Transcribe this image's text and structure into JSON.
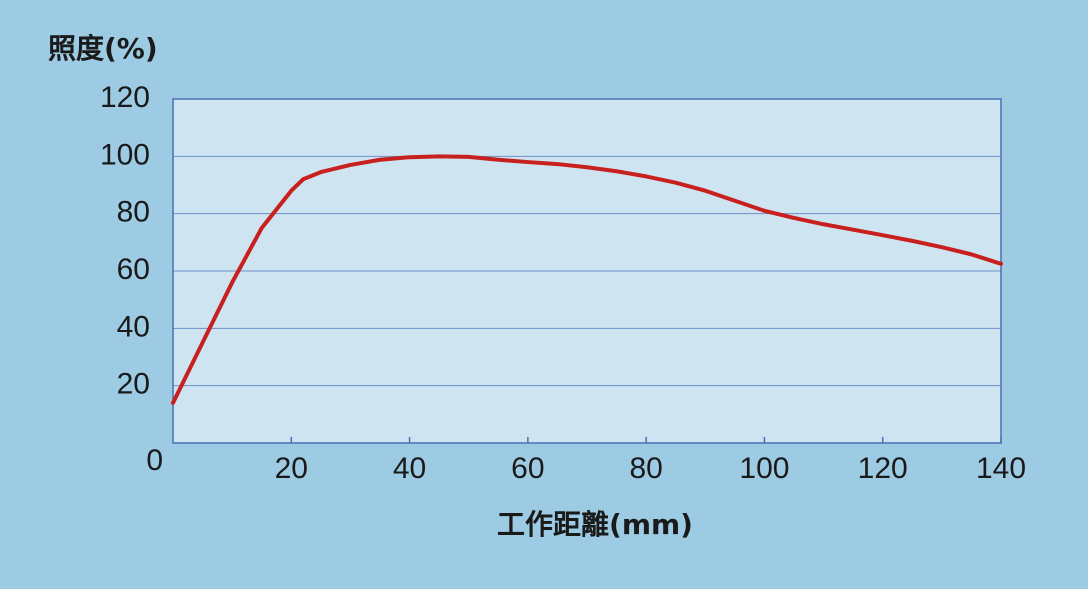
{
  "chart_data": {
    "type": "line",
    "y_label": "照度(%)",
    "x_label": "工作距離(mm)",
    "x": [
      0,
      5,
      10,
      15,
      20,
      22,
      25,
      30,
      35,
      40,
      45,
      50,
      55,
      60,
      65,
      70,
      75,
      80,
      85,
      90,
      95,
      100,
      105,
      110,
      115,
      120,
      125,
      130,
      135,
      140
    ],
    "series": [
      {
        "color": "#c8201e",
        "values": [
          14,
          35,
          56,
          75,
          88,
          92,
          94.5,
          97,
          98.8,
          99.7,
          100,
          99.8,
          98.8,
          98,
          97.3,
          96.2,
          94.8,
          93,
          90.8,
          88,
          84.5,
          81,
          78.5,
          76.3,
          74.4,
          72.5,
          70.5,
          68.3,
          65.8,
          62.5
        ]
      }
    ],
    "xlim": [
      0,
      140
    ],
    "xticks": [
      20,
      40,
      60,
      80,
      100,
      120,
      140
    ],
    "ylim": [
      0,
      120
    ],
    "yticks": [
      0,
      20,
      40,
      60,
      80,
      100,
      120
    ],
    "grid": true
  }
}
